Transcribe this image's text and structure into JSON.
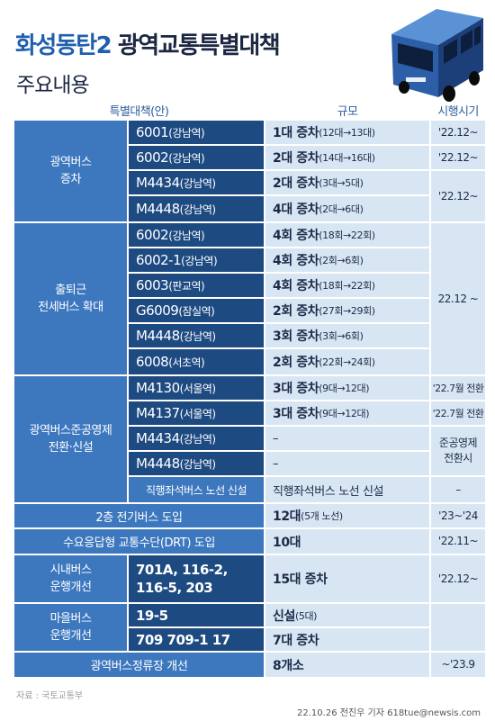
{
  "title": {
    "blue": "화성동탄2",
    "dark": "광역교통특별대책"
  },
  "subtitle": "주요내용",
  "headers": {
    "plan": "특별대책(안)",
    "scale": "규모",
    "period": "시행시기"
  },
  "sections": {
    "bus_increase": {
      "category": [
        "광역버스",
        "증차"
      ],
      "rows": [
        {
          "route": "6001",
          "station": "(강남역)",
          "scale_main": "1대 증차",
          "scale_detail": "(12대→13대)"
        },
        {
          "route": "6002",
          "station": "(강남역)",
          "scale_main": "2대 증차",
          "scale_detail": "(14대→16대)"
        },
        {
          "route": "M4434",
          "station": "(강남역)",
          "scale_main": "2대 증차",
          "scale_detail": "(3대→5대)"
        },
        {
          "route": "M4448",
          "station": "(강남역)",
          "scale_main": "4대 증차",
          "scale_detail": "(2대→6대)"
        }
      ],
      "periods": [
        "'22.12~",
        "'22.12~",
        "'22.12~"
      ]
    },
    "commute": {
      "category": [
        "출퇴근",
        "전세버스 확대"
      ],
      "rows": [
        {
          "route": "6002",
          "station": "(강남역)",
          "scale_main": "4회 증차",
          "scale_detail": "(18회→22회)"
        },
        {
          "route": "6002-1",
          "station": "(강남역)",
          "scale_main": "4회 증차",
          "scale_detail": "(2회→6회)"
        },
        {
          "route": "6003",
          "station": "(판교역)",
          "scale_main": "4회 증차",
          "scale_detail": "(18회→22회)"
        },
        {
          "route": "G6009",
          "station": "(잠실역)",
          "scale_main": "2회 증차",
          "scale_detail": "(27회→29회)"
        },
        {
          "route": "M4448",
          "station": "(강남역)",
          "scale_main": "3회 증차",
          "scale_detail": "(3회→6회)"
        },
        {
          "route": "6008",
          "station": "(서초역)",
          "scale_main": "2회 증차",
          "scale_detail": "(22회→24회)"
        }
      ],
      "period": "22.12 ~"
    },
    "public_management": {
      "category": [
        "광역버스준공영제",
        "전환·신설"
      ],
      "rows": [
        {
          "route": "M4130",
          "station": "(서울역)",
          "scale_main": "3대 증차",
          "scale_detail": "(9대→12대)",
          "period": "'22.7월 전환"
        },
        {
          "route": "M4137",
          "station": "(서울역)",
          "scale_main": "3대 증차",
          "scale_detail": "(9대→12대)",
          "period": "'22.7월 전환"
        },
        {
          "route": "M4434",
          "station": "(강남역)",
          "scale_main": "–",
          "scale_detail": ""
        },
        {
          "route": "M4448",
          "station": "(강남역)",
          "scale_main": "–",
          "scale_detail": ""
        }
      ],
      "merged_period": [
        "준공영제",
        "전환시"
      ],
      "express": {
        "route": "직행좌석버스 노선 신설",
        "scale": "직행좌석버스 노선 신설",
        "period": "–"
      }
    },
    "double_decker": {
      "label": "2층 전기버스 도입",
      "scale_main": "12대",
      "scale_detail": "(5개 노선)",
      "period": "'23~'24"
    },
    "drt": {
      "label": "수요응답형 교통수단(DRT) 도입",
      "scale_main": "10대",
      "period": "'22.11~"
    },
    "city_bus": {
      "category": [
        "시내버스",
        "운행개선"
      ],
      "routes": "701A, 116-2, 116-5, 203",
      "scale_main": "15대 증차",
      "period": "'22.12~"
    },
    "village_bus": {
      "category": [
        "마을버스",
        "운행개선"
      ],
      "rows": [
        {
          "route": "19-5",
          "scale_main": "신설",
          "scale_detail": "(5대)"
        },
        {
          "route": "709 709-1 17",
          "scale_main": "7대 증차",
          "scale_detail": ""
        }
      ]
    },
    "bus_stop": {
      "label": "광역버스정류장 개선",
      "scale_main": "8개소",
      "period": "~'23.9"
    }
  },
  "footer": {
    "source": "자료 : 국토교통부",
    "credit": "22.10.26 전진우 기자 618tue@newsis.com"
  },
  "colors": {
    "dark_blue": "#1e4a82",
    "mid_blue": "#3d78bf",
    "light_blue": "#d8e6f4",
    "title_blue": "#1f5fad"
  }
}
